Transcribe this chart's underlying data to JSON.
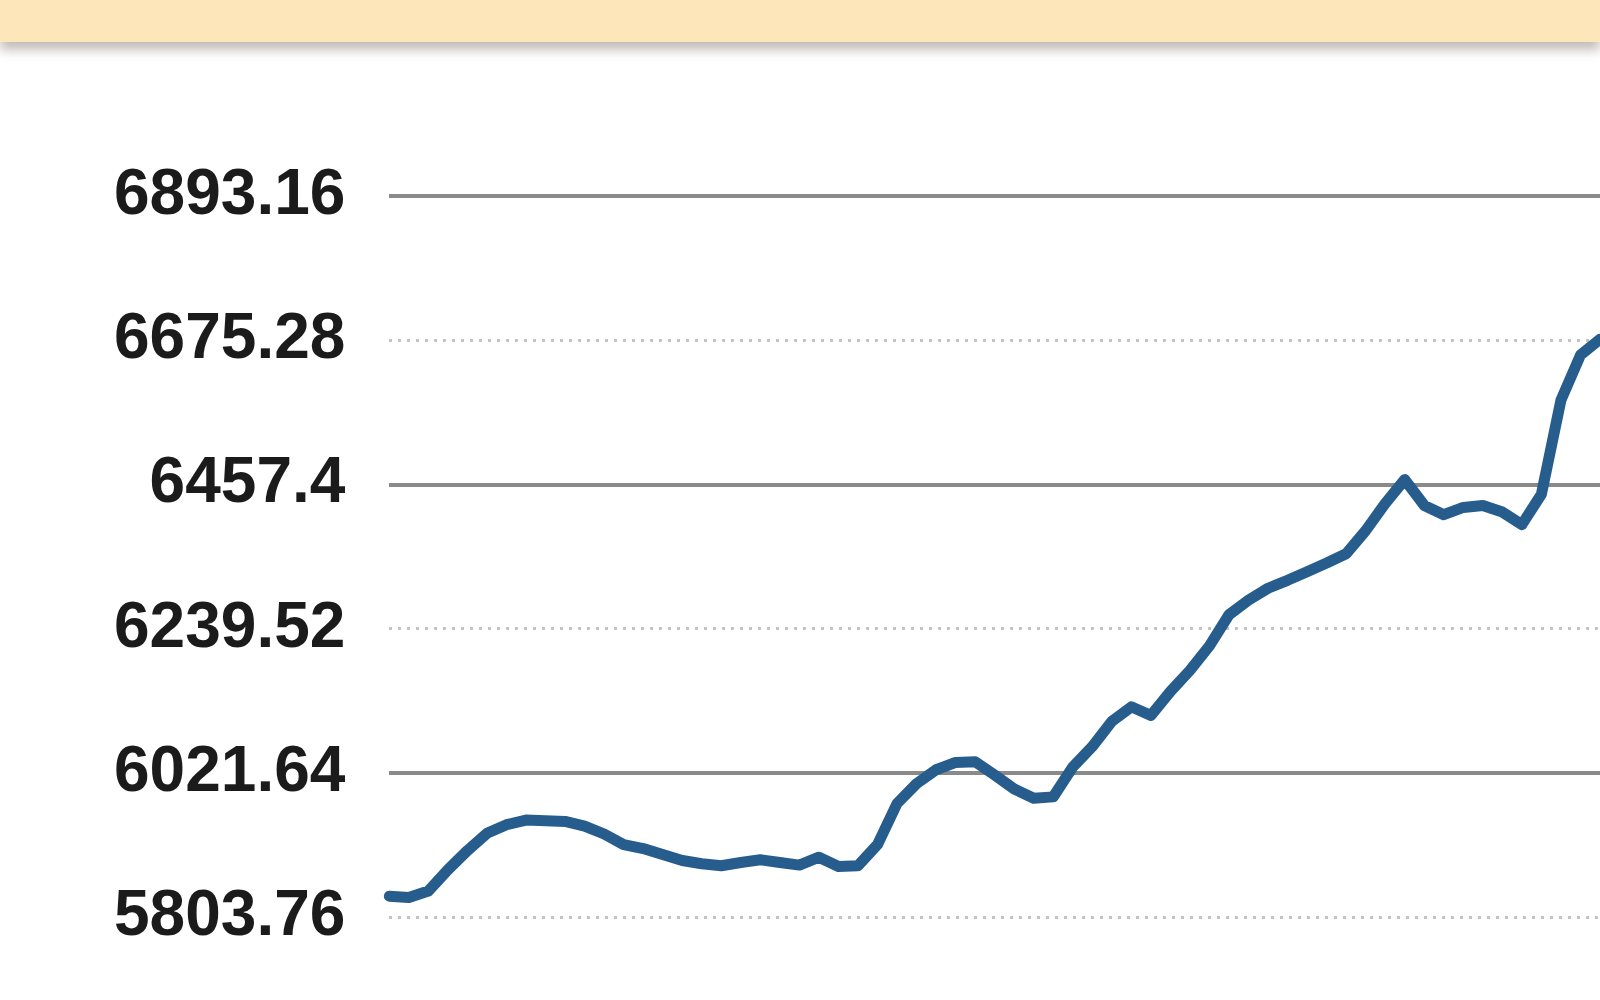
{
  "chart_data": {
    "type": "line",
    "categories": [
      null,
      null,
      null,
      null,
      null,
      null,
      null,
      null,
      null,
      null,
      null,
      null,
      null,
      null,
      null,
      null,
      null,
      null,
      null,
      null,
      null,
      null,
      null,
      null,
      null,
      null,
      null,
      null,
      null,
      null,
      null,
      null,
      null,
      null,
      null,
      null,
      null,
      null,
      null,
      null,
      null,
      null,
      null,
      null,
      null,
      null,
      null,
      null,
      null,
      null,
      null,
      null,
      null,
      null,
      null,
      null,
      null,
      null,
      null,
      null,
      null,
      null,
      null
    ],
    "values": [
      5836,
      5834,
      5844,
      5876,
      5905,
      5931,
      5944,
      5951,
      5950,
      5949,
      5942,
      5930,
      5914,
      5908,
      5899,
      5890,
      5885,
      5882,
      5887,
      5891,
      5887,
      5883,
      5895,
      5881,
      5882,
      5914,
      5976,
      6006,
      6027,
      6038,
      6039,
      6019,
      5998,
      5984,
      5986,
      6031,
      6062,
      6100,
      6122,
      6109,
      6145,
      6177,
      6214,
      6261,
      6283,
      6301,
      6313,
      6326,
      6339,
      6353,
      6388,
      6429,
      6465,
      6426,
      6412,
      6423,
      6426,
      6416,
      6397,
      6443,
      6585,
      6653,
      6677
    ],
    "color": "#275d8d",
    "ylim": [
      5803.76,
      6893.16
    ],
    "yticks": [
      5803.76,
      6021.64,
      6239.52,
      6457.4,
      6675.28,
      6893.16
    ],
    "grid": "y",
    "line_style": "solid"
  }
}
